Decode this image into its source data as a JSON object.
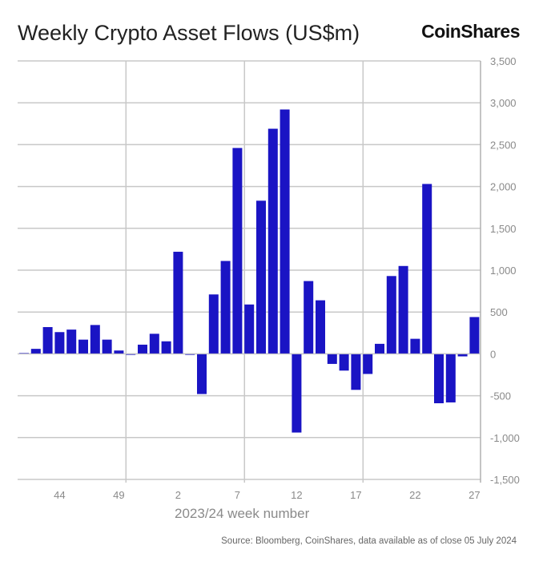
{
  "chart_data": {
    "type": "bar",
    "title": "Weekly Crypto Asset Flows (US$m)",
    "xlabel": "2023/24 week number",
    "ylabel": "",
    "ylim": [
      -1500,
      3500
    ],
    "yticks": [
      3500,
      3000,
      2500,
      2000,
      1500,
      1000,
      500,
      0,
      -500,
      -1000,
      -1500
    ],
    "ytick_labels": [
      "3,500",
      "3,000",
      "2,500",
      "2,000",
      "1,500",
      "1,000",
      "500",
      "0",
      "-500",
      "-1,000",
      "-1,500"
    ],
    "xtick_labels": [
      "44",
      "49",
      "2",
      "7",
      "12",
      "17",
      "22",
      "27"
    ],
    "grid": true,
    "y_axis_side": "right",
    "bar_color": "#1a14c4",
    "categories": [
      "41",
      "42",
      "43",
      "44",
      "45",
      "46",
      "47",
      "48",
      "49",
      "50",
      "51",
      "52",
      "1",
      "2",
      "3",
      "4",
      "5",
      "6",
      "7",
      "8",
      "9",
      "10",
      "11",
      "12",
      "13",
      "14",
      "15",
      "16",
      "17",
      "18",
      "19",
      "20",
      "21",
      "22",
      "23",
      "24",
      "25",
      "26",
      "27"
    ],
    "values": [
      10,
      60,
      320,
      260,
      290,
      170,
      345,
      170,
      40,
      -10,
      110,
      240,
      150,
      1220,
      -10,
      -480,
      710,
      1110,
      2460,
      590,
      1830,
      2690,
      2920,
      -940,
      870,
      640,
      -120,
      -200,
      -430,
      -240,
      120,
      930,
      1050,
      180,
      2030,
      -590,
      -580,
      -30,
      440
    ]
  },
  "logo": "CoinShares",
  "source": "Source: Bloomberg, CoinShares, data available as of close 05 July 2024"
}
